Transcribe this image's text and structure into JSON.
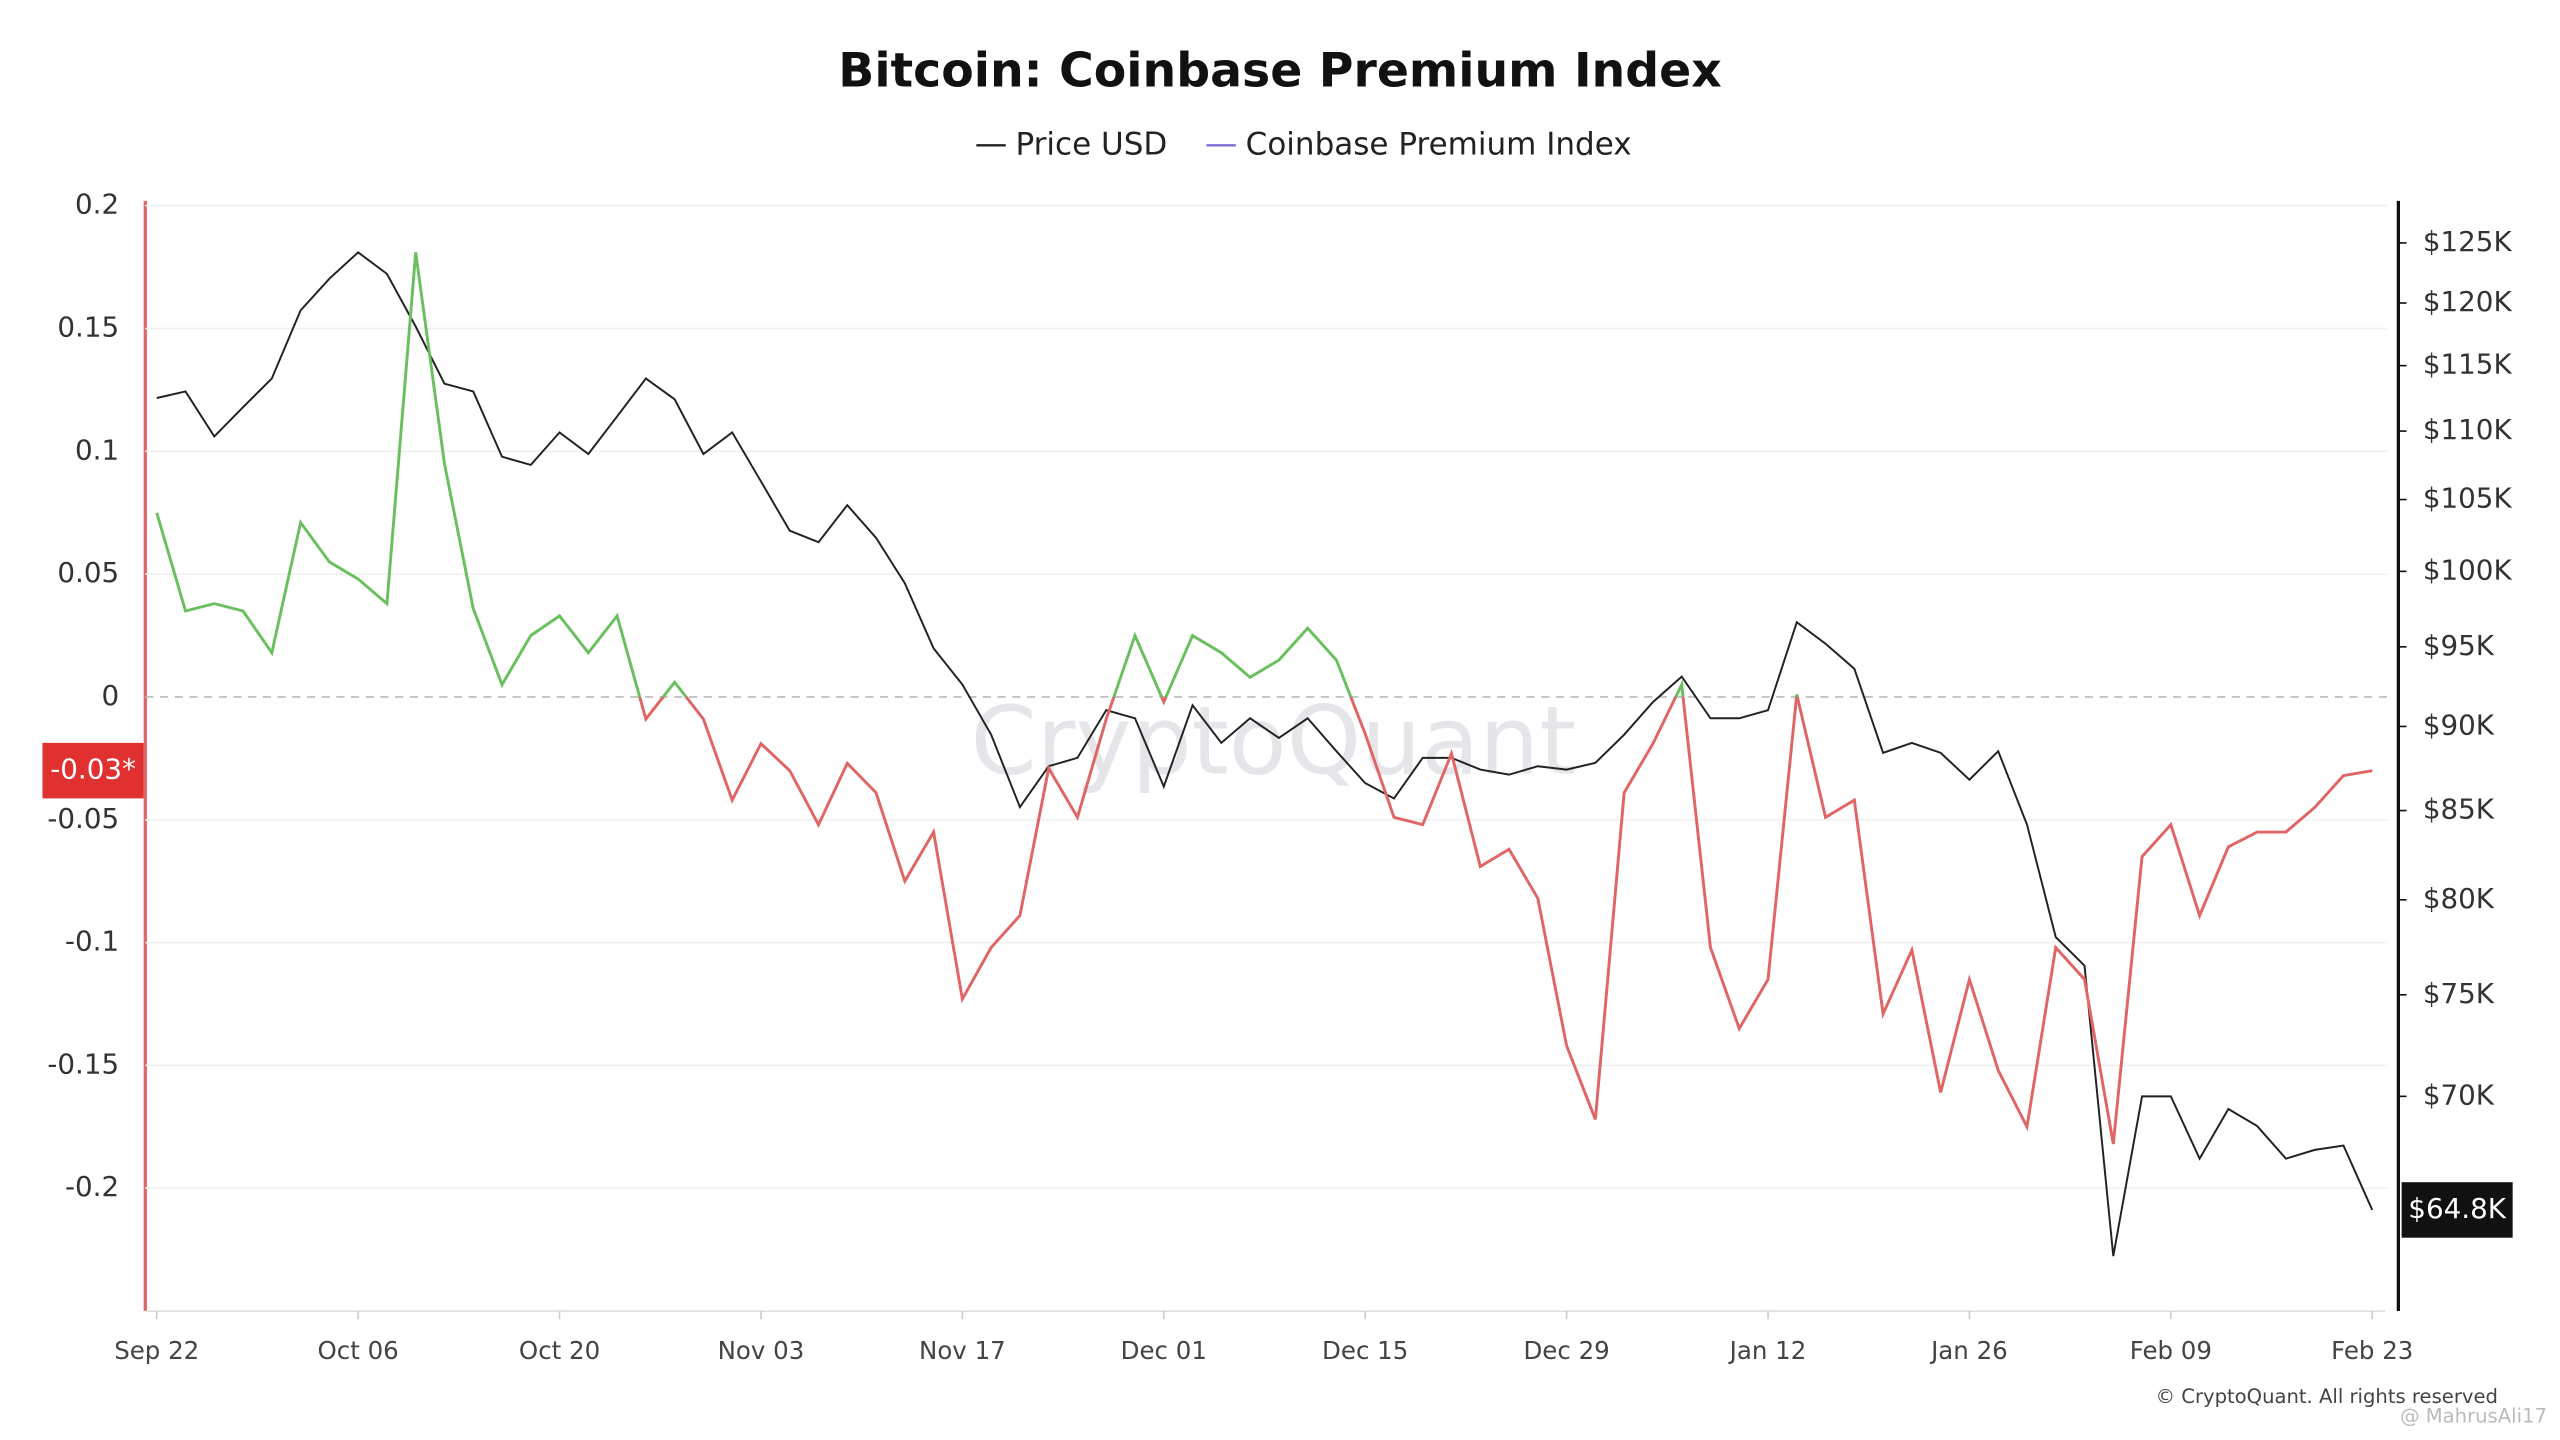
{
  "chart_data": {
    "type": "line",
    "title": "Bitcoin: Coinbase Premium Index",
    "watermark": "CryptoQuant",
    "footer": "© CryptoQuant. All rights reserved",
    "credit": "@ MahrusAli17",
    "categories": [
      "Sep 22",
      null,
      null,
      null,
      null,
      null,
      null,
      "Oct 06",
      null,
      null,
      null,
      null,
      null,
      null,
      "Oct 20",
      null,
      null,
      null,
      null,
      null,
      null,
      "Nov 03",
      null,
      null,
      null,
      null,
      null,
      null,
      "Nov 17",
      null,
      null,
      null,
      null,
      null,
      null,
      "Dec 01",
      null,
      null,
      null,
      null,
      null,
      null,
      "Dec 15",
      null,
      null,
      null,
      null,
      null,
      null,
      "Dec 29",
      null,
      null,
      null,
      null,
      null,
      null,
      "Jan 12",
      null,
      null,
      null,
      null,
      null,
      null,
      "Jan 26",
      null,
      null,
      null,
      null,
      null,
      null,
      "Feb 09",
      null,
      null,
      null,
      null,
      null,
      null,
      "Feb 23"
    ],
    "series": [
      {
        "name": "Price USD",
        "color": "#222222",
        "axis": "y2",
        "values": [
          112500,
          113000,
          109600,
          111800,
          114000,
          119400,
          122000,
          124200,
          122400,
          118100,
          113600,
          113000,
          108100,
          107500,
          109900,
          108300,
          111100,
          114000,
          112400,
          108300,
          109900,
          106300,
          102800,
          102000,
          104600,
          102300,
          99200,
          94900,
          92600,
          89500,
          85200,
          87600,
          88100,
          91000,
          90500,
          86400,
          91300,
          89000,
          90500,
          89300,
          90500,
          88500,
          86600,
          85700,
          88100,
          88100,
          87400,
          87100,
          87600,
          87400,
          87800,
          89500,
          91500,
          93100,
          90500,
          90500,
          91000,
          96600,
          95200,
          93600,
          88400,
          89000,
          88400,
          86800,
          88500,
          84200,
          78000,
          76500,
          62800,
          70000,
          70000,
          67100,
          69400,
          68600,
          67100,
          67500,
          67700,
          64800
        ],
        "current": {
          "value": 64800,
          "label": "$64.8K"
        }
      },
      {
        "name": "Coinbase Premium Index",
        "color": "#7b6fd6",
        "positive_color": "#6abf5e",
        "negative_color": "#e06666",
        "values": [
          0.075,
          0.035,
          0.038,
          0.035,
          0.018,
          0.071,
          0.055,
          0.048,
          0.038,
          0.181,
          0.095,
          0.036,
          0.005,
          0.025,
          0.033,
          0.018,
          0.033,
          -0.009,
          0.006,
          -0.009,
          -0.042,
          -0.019,
          -0.03,
          -0.052,
          -0.027,
          -0.039,
          -0.075,
          -0.055,
          -0.123,
          -0.102,
          -0.089,
          -0.029,
          -0.049,
          -0.009,
          0.025,
          -0.002,
          0.025,
          0.018,
          0.008,
          0.015,
          0.028,
          0.015,
          -0.015,
          -0.049,
          -0.052,
          -0.023,
          -0.069,
          -0.062,
          -0.082,
          -0.142,
          -0.172,
          -0.039,
          -0.019,
          0.005,
          -0.102,
          -0.135,
          -0.115,
          0.001,
          -0.049,
          -0.042,
          -0.129,
          -0.103,
          -0.161,
          -0.115,
          -0.152,
          -0.175,
          -0.102,
          -0.115,
          -0.182,
          -0.065,
          -0.052,
          -0.089,
          -0.061,
          -0.055,
          -0.055,
          -0.045,
          -0.032,
          -0.03
        ],
        "current": {
          "value": -0.03,
          "label": "-0.03*"
        }
      }
    ],
    "ylim": [
      -0.25,
      0.2
    ],
    "yticks": [
      0.2,
      0.15,
      0.1,
      0.05,
      0,
      -0.05,
      -0.1,
      -0.15,
      -0.2
    ],
    "y2lim": [
      60500,
      128200
    ],
    "y2scale": "log",
    "y2ticks": [
      {
        "value": 125000,
        "label": "$125K"
      },
      {
        "value": 120000,
        "label": "$120K"
      },
      {
        "value": 115000,
        "label": "$115K"
      },
      {
        "value": 110000,
        "label": "$110K"
      },
      {
        "value": 105000,
        "label": "$105K"
      },
      {
        "value": 100000,
        "label": "$100K"
      },
      {
        "value": 95000,
        "label": "$95K"
      },
      {
        "value": 90000,
        "label": "$90K"
      },
      {
        "value": 85000,
        "label": "$85K"
      },
      {
        "value": 80000,
        "label": "$80K"
      },
      {
        "value": 75000,
        "label": "$75K"
      },
      {
        "value": 70000,
        "label": "$70K"
      }
    ],
    "grid": true,
    "legend": "top"
  }
}
